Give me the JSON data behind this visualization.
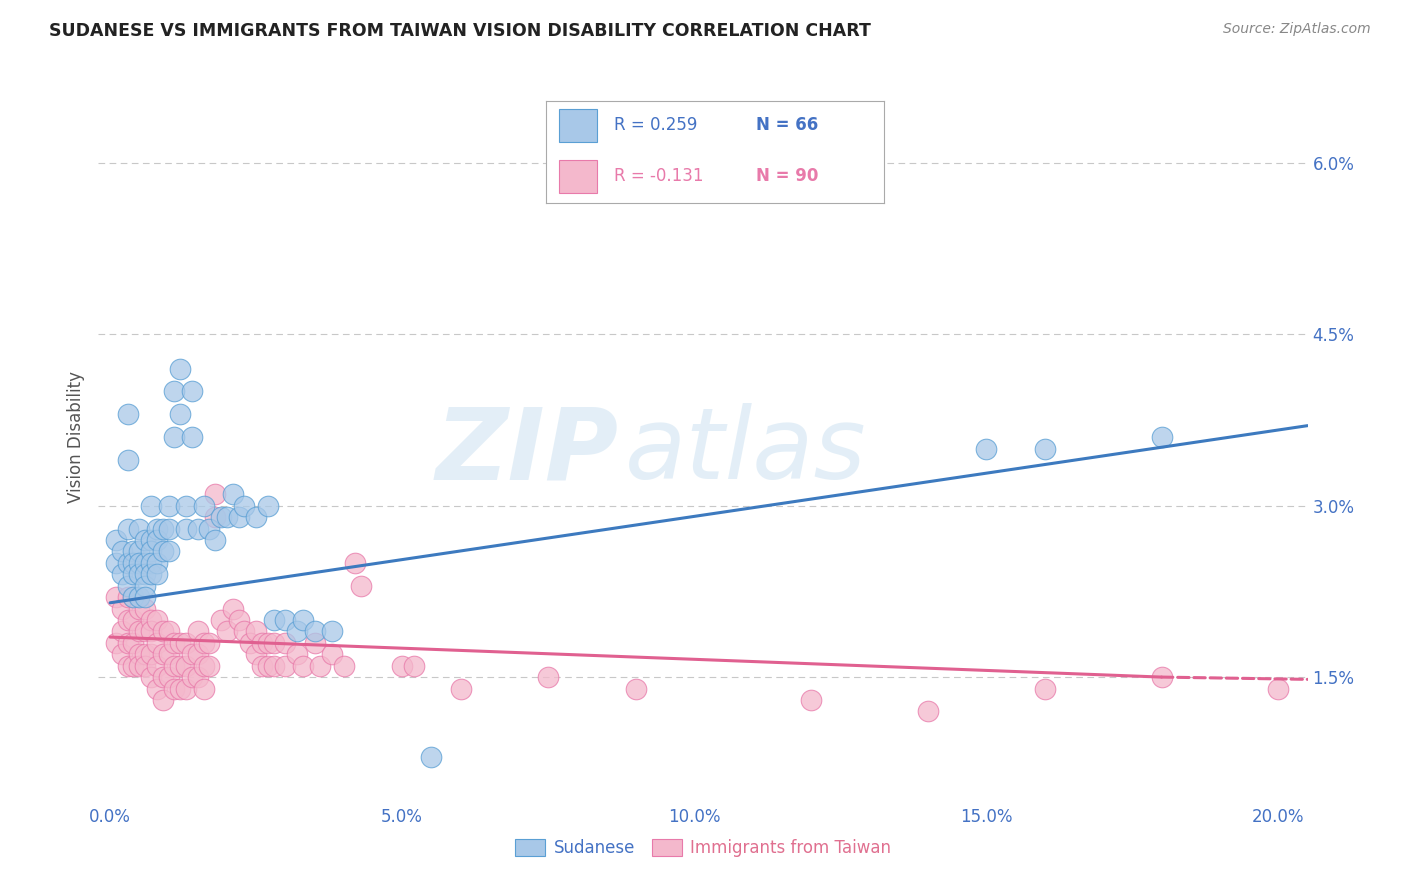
{
  "title": "SUDANESE VS IMMIGRANTS FROM TAIWAN VISION DISABILITY CORRELATION CHART",
  "source": "Source: ZipAtlas.com",
  "ylabel": "Vision Disability",
  "xlabel_ticks": [
    "0.0%",
    "5.0%",
    "10.0%",
    "15.0%",
    "20.0%"
  ],
  "xlabel_vals": [
    0.0,
    0.05,
    0.1,
    0.15,
    0.2
  ],
  "ylabel_ticks": [
    "1.5%",
    "3.0%",
    "4.5%",
    "6.0%"
  ],
  "ylabel_vals": [
    0.015,
    0.03,
    0.045,
    0.06
  ],
  "xlim": [
    -0.002,
    0.205
  ],
  "ylim": [
    0.004,
    0.068
  ],
  "blue_color": "#a8c8e8",
  "pink_color": "#f4b8cc",
  "blue_edge_color": "#5a9fd4",
  "pink_edge_color": "#e87aaa",
  "blue_line_color": "#3d7abf",
  "pink_line_color": "#e06090",
  "blue_scatter": [
    [
      0.001,
      0.027
    ],
    [
      0.001,
      0.025
    ],
    [
      0.002,
      0.026
    ],
    [
      0.002,
      0.024
    ],
    [
      0.003,
      0.038
    ],
    [
      0.003,
      0.034
    ],
    [
      0.003,
      0.028
    ],
    [
      0.003,
      0.025
    ],
    [
      0.003,
      0.023
    ],
    [
      0.004,
      0.026
    ],
    [
      0.004,
      0.025
    ],
    [
      0.004,
      0.024
    ],
    [
      0.004,
      0.022
    ],
    [
      0.005,
      0.028
    ],
    [
      0.005,
      0.026
    ],
    [
      0.005,
      0.025
    ],
    [
      0.005,
      0.024
    ],
    [
      0.005,
      0.022
    ],
    [
      0.006,
      0.027
    ],
    [
      0.006,
      0.025
    ],
    [
      0.006,
      0.024
    ],
    [
      0.006,
      0.023
    ],
    [
      0.006,
      0.022
    ],
    [
      0.007,
      0.03
    ],
    [
      0.007,
      0.027
    ],
    [
      0.007,
      0.026
    ],
    [
      0.007,
      0.025
    ],
    [
      0.007,
      0.024
    ],
    [
      0.008,
      0.028
    ],
    [
      0.008,
      0.027
    ],
    [
      0.008,
      0.025
    ],
    [
      0.008,
      0.024
    ],
    [
      0.009,
      0.028
    ],
    [
      0.009,
      0.026
    ],
    [
      0.01,
      0.03
    ],
    [
      0.01,
      0.028
    ],
    [
      0.01,
      0.026
    ],
    [
      0.011,
      0.04
    ],
    [
      0.011,
      0.036
    ],
    [
      0.012,
      0.042
    ],
    [
      0.012,
      0.038
    ],
    [
      0.013,
      0.03
    ],
    [
      0.013,
      0.028
    ],
    [
      0.014,
      0.04
    ],
    [
      0.014,
      0.036
    ],
    [
      0.015,
      0.028
    ],
    [
      0.016,
      0.03
    ],
    [
      0.017,
      0.028
    ],
    [
      0.018,
      0.027
    ],
    [
      0.019,
      0.029
    ],
    [
      0.02,
      0.029
    ],
    [
      0.021,
      0.031
    ],
    [
      0.022,
      0.029
    ],
    [
      0.023,
      0.03
    ],
    [
      0.025,
      0.029
    ],
    [
      0.027,
      0.03
    ],
    [
      0.028,
      0.02
    ],
    [
      0.03,
      0.02
    ],
    [
      0.032,
      0.019
    ],
    [
      0.033,
      0.02
    ],
    [
      0.035,
      0.019
    ],
    [
      0.038,
      0.019
    ],
    [
      0.055,
      0.008
    ],
    [
      0.15,
      0.035
    ],
    [
      0.16,
      0.035
    ],
    [
      0.18,
      0.036
    ]
  ],
  "pink_scatter": [
    [
      0.001,
      0.022
    ],
    [
      0.001,
      0.018
    ],
    [
      0.002,
      0.021
    ],
    [
      0.002,
      0.019
    ],
    [
      0.002,
      0.017
    ],
    [
      0.003,
      0.022
    ],
    [
      0.003,
      0.02
    ],
    [
      0.003,
      0.018
    ],
    [
      0.003,
      0.016
    ],
    [
      0.004,
      0.022
    ],
    [
      0.004,
      0.02
    ],
    [
      0.004,
      0.018
    ],
    [
      0.004,
      0.016
    ],
    [
      0.005,
      0.021
    ],
    [
      0.005,
      0.019
    ],
    [
      0.005,
      0.017
    ],
    [
      0.005,
      0.016
    ],
    [
      0.006,
      0.021
    ],
    [
      0.006,
      0.019
    ],
    [
      0.006,
      0.017
    ],
    [
      0.006,
      0.016
    ],
    [
      0.007,
      0.02
    ],
    [
      0.007,
      0.019
    ],
    [
      0.007,
      0.017
    ],
    [
      0.007,
      0.015
    ],
    [
      0.008,
      0.02
    ],
    [
      0.008,
      0.018
    ],
    [
      0.008,
      0.016
    ],
    [
      0.008,
      0.014
    ],
    [
      0.009,
      0.019
    ],
    [
      0.009,
      0.017
    ],
    [
      0.009,
      0.015
    ],
    [
      0.009,
      0.013
    ],
    [
      0.01,
      0.019
    ],
    [
      0.01,
      0.017
    ],
    [
      0.01,
      0.015
    ],
    [
      0.011,
      0.018
    ],
    [
      0.011,
      0.016
    ],
    [
      0.011,
      0.014
    ],
    [
      0.012,
      0.018
    ],
    [
      0.012,
      0.016
    ],
    [
      0.012,
      0.014
    ],
    [
      0.013,
      0.018
    ],
    [
      0.013,
      0.016
    ],
    [
      0.013,
      0.014
    ],
    [
      0.014,
      0.017
    ],
    [
      0.014,
      0.015
    ],
    [
      0.015,
      0.019
    ],
    [
      0.015,
      0.017
    ],
    [
      0.015,
      0.015
    ],
    [
      0.016,
      0.018
    ],
    [
      0.016,
      0.016
    ],
    [
      0.016,
      0.014
    ],
    [
      0.017,
      0.018
    ],
    [
      0.017,
      0.016
    ],
    [
      0.018,
      0.031
    ],
    [
      0.018,
      0.029
    ],
    [
      0.019,
      0.02
    ],
    [
      0.02,
      0.019
    ],
    [
      0.021,
      0.021
    ],
    [
      0.022,
      0.02
    ],
    [
      0.023,
      0.019
    ],
    [
      0.024,
      0.018
    ],
    [
      0.025,
      0.019
    ],
    [
      0.025,
      0.017
    ],
    [
      0.026,
      0.018
    ],
    [
      0.026,
      0.016
    ],
    [
      0.027,
      0.018
    ],
    [
      0.027,
      0.016
    ],
    [
      0.028,
      0.018
    ],
    [
      0.028,
      0.016
    ],
    [
      0.03,
      0.018
    ],
    [
      0.03,
      0.016
    ],
    [
      0.032,
      0.017
    ],
    [
      0.033,
      0.016
    ],
    [
      0.035,
      0.018
    ],
    [
      0.036,
      0.016
    ],
    [
      0.038,
      0.017
    ],
    [
      0.04,
      0.016
    ],
    [
      0.042,
      0.025
    ],
    [
      0.043,
      0.023
    ],
    [
      0.05,
      0.016
    ],
    [
      0.052,
      0.016
    ],
    [
      0.06,
      0.014
    ],
    [
      0.075,
      0.015
    ],
    [
      0.09,
      0.014
    ],
    [
      0.12,
      0.013
    ],
    [
      0.14,
      0.012
    ],
    [
      0.16,
      0.014
    ],
    [
      0.18,
      0.015
    ],
    [
      0.2,
      0.014
    ]
  ],
  "blue_line": {
    "x0": 0.0,
    "y0": 0.0215,
    "x1": 0.205,
    "y1": 0.037
  },
  "pink_line": {
    "x0": 0.0,
    "y0": 0.0185,
    "x1": 0.18,
    "y1": 0.015
  },
  "pink_line_dash_start": 0.18,
  "pink_line_dash_end": 0.205,
  "pink_line_dash_y_start": 0.015,
  "pink_line_dash_y_end": 0.0148,
  "watermark_line1": "ZIP",
  "watermark_line2": "atlas",
  "background_color": "#ffffff",
  "grid_color": "#c8c8c8",
  "text_color_blue": "#4472c4",
  "text_color_pink": "#e07090"
}
